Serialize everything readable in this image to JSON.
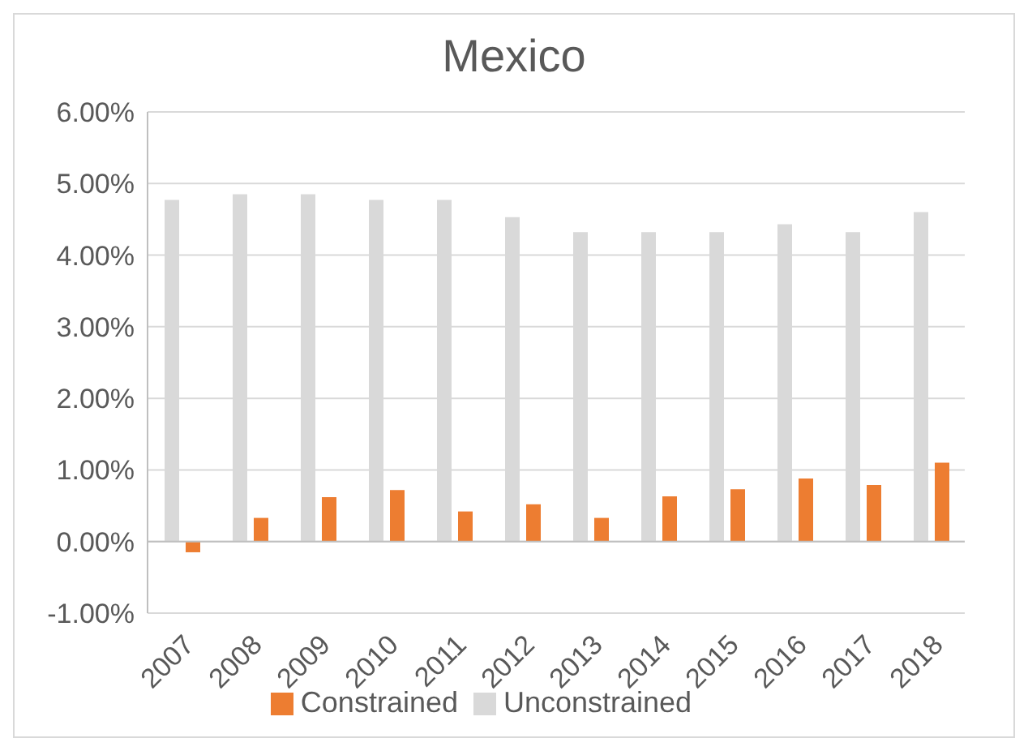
{
  "chart_data": {
    "type": "bar",
    "title": "Mexico",
    "categories": [
      "2007",
      "2008",
      "2009",
      "2010",
      "2011",
      "2012",
      "2013",
      "2014",
      "2015",
      "2016",
      "2017",
      "2018"
    ],
    "series": [
      {
        "name": "Unconstrained",
        "color": "#d9d9d9",
        "values": [
          4.77,
          4.85,
          4.85,
          4.77,
          4.77,
          4.53,
          4.32,
          4.32,
          4.32,
          4.43,
          4.32,
          4.6
        ]
      },
      {
        "name": "Constrained",
        "color": "#ed7d31",
        "values": [
          -0.15,
          0.33,
          0.62,
          0.72,
          0.42,
          0.52,
          0.33,
          0.63,
          0.73,
          0.88,
          0.79,
          1.1
        ]
      }
    ],
    "ylim": [
      -1,
      6
    ],
    "yticks": [
      {
        "value": -1,
        "label": "-1.00%"
      },
      {
        "value": 0,
        "label": "0.00%"
      },
      {
        "value": 1,
        "label": "1.00%"
      },
      {
        "value": 2,
        "label": "2.00%"
      },
      {
        "value": 3,
        "label": "3.00%"
      },
      {
        "value": 4,
        "label": "4.00%"
      },
      {
        "value": 5,
        "label": "5.00%"
      },
      {
        "value": 6,
        "label": "6.00%"
      }
    ],
    "grid": "y",
    "legend": "bottom"
  }
}
